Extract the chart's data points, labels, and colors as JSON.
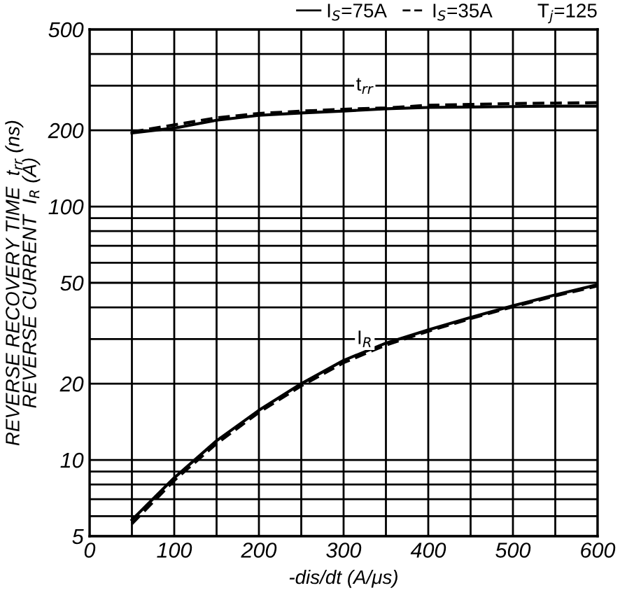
{
  "chart_data": {
    "type": "line",
    "xlabel": "-dis/dt (A/μs)",
    "ylabel": "REVERSE RECOVERY TIME  t$_{rr}$ (ns)\nREVERSE CURRENT  I$_{R}$ (A)",
    "x": [
      50,
      100,
      150,
      200,
      250,
      300,
      350,
      400,
      450,
      500,
      550,
      600
    ],
    "series": [
      {
        "name": "I$_{S}$=75A",
        "color": "#000000",
        "line_style": "solid",
        "values": [
          195,
          204,
          219,
          229,
          234,
          238,
          243,
          246,
          247,
          248,
          249,
          249
        ]
      },
      {
        "name": "I$_{S}$=35A",
        "color": "#000000",
        "line_style": "dashed",
        "values": [
          197,
          210,
          224,
          233,
          238,
          242,
          245,
          251,
          253,
          255,
          256,
          257
        ]
      },
      {
        "color": "#000000",
        "line_style": "solid",
        "values": [
          5.8,
          8.5,
          11.9,
          15.7,
          20.0,
          24.7,
          28.9,
          32.6,
          36.5,
          40.6,
          44.8,
          49.2
        ]
      },
      {
        "color": "#000000",
        "line_style": "dashed",
        "values": [
          5.6,
          8.3,
          11.6,
          15.4,
          19.6,
          24.2,
          28.4,
          32.2,
          36.1,
          40.2,
          44.4,
          48.6
        ]
      }
    ],
    "annotations": [
      {
        "text": "t$_{rr}$",
        "x": 325,
        "y": 300
      },
      {
        "text": "I$_{R}$",
        "x": 325,
        "y": 30
      },
      "T$_{j}$=125"
    ],
    "log": "y",
    "xlim": [
      0,
      600
    ],
    "xticks": [
      0,
      {
        "value": 50,
        "label": null
      },
      100,
      {
        "value": 150,
        "label": null
      },
      200,
      {
        "value": 250,
        "label": null
      },
      300,
      {
        "value": 350,
        "label": null
      },
      400,
      {
        "value": 450,
        "label": null
      },
      500,
      {
        "value": 550,
        "label": null
      },
      600
    ],
    "ylim": [
      5,
      500
    ],
    "yticks": [
      5,
      {
        "value": 6,
        "label": null
      },
      {
        "value": 7,
        "label": null
      },
      {
        "value": 8,
        "label": null
      },
      {
        "value": 9,
        "label": null
      },
      10,
      20,
      {
        "value": 30,
        "label": null
      },
      {
        "value": 40,
        "label": null
      },
      50,
      {
        "value": 60,
        "label": null
      },
      {
        "value": 70,
        "label": null
      },
      {
        "value": 80,
        "label": null
      },
      {
        "value": 90,
        "label": null
      },
      100,
      200,
      {
        "value": 300,
        "label": null
      },
      {
        "value": 400,
        "label": null
      },
      500
    ],
    "grid": true,
    "legend": "top right",
    "marker": "none"
  }
}
